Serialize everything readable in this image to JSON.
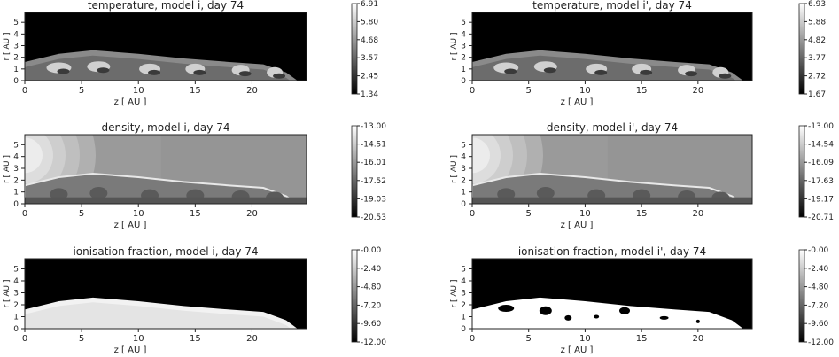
{
  "panels": [
    {
      "title": "temperature, model i, day 74",
      "xlabel": "z [ AU ]",
      "ylabel": "r [ AU ]",
      "xticks": [
        "0",
        "5",
        "10",
        "15",
        "20"
      ],
      "yticks": [
        "0",
        "1",
        "2",
        "3",
        "4",
        "5"
      ],
      "colorbar": [
        "6.91",
        "5.80",
        "4.68",
        "3.57",
        "2.45",
        "1.34"
      ],
      "kind": "temperature"
    },
    {
      "title": "temperature, model i', day 74",
      "xlabel": "z [ AU ]",
      "ylabel": "r [ AU ]",
      "xticks": [
        "0",
        "5",
        "10",
        "15",
        "20"
      ],
      "yticks": [
        "0",
        "1",
        "2",
        "3",
        "4",
        "5"
      ],
      "colorbar": [
        "6.93",
        "5.88",
        "4.82",
        "3.77",
        "2.72",
        "1.67"
      ],
      "kind": "temperature"
    },
    {
      "title": "density, model i, day 74",
      "xlabel": "z [ AU ]",
      "ylabel": "r [ AU ]",
      "xticks": [
        "0",
        "5",
        "10",
        "15",
        "20"
      ],
      "yticks": [
        "0",
        "1",
        "2",
        "3",
        "4",
        "5"
      ],
      "colorbar": [
        "-13.00",
        "-14.51",
        "-16.01",
        "-17.52",
        "-19.03",
        "-20.53"
      ],
      "kind": "density"
    },
    {
      "title": "density, model i', day 74",
      "xlabel": "z [ AU ]",
      "ylabel": "r [ AU ]",
      "xticks": [
        "0",
        "5",
        "10",
        "15",
        "20"
      ],
      "yticks": [
        "0",
        "1",
        "2",
        "3",
        "4",
        "5"
      ],
      "colorbar": [
        "-13.00",
        "-14.54",
        "-16.09",
        "-17.63",
        "-19.17",
        "-20.71"
      ],
      "kind": "density"
    },
    {
      "title": "ionisation fraction, model i, day 74",
      "xlabel": "z [ AU ]",
      "ylabel": "r [ AU ]",
      "xticks": [
        "0",
        "5",
        "10",
        "15",
        "20"
      ],
      "yticks": [
        "0",
        "1",
        "2",
        "3",
        "4",
        "5"
      ],
      "colorbar": [
        "-0.00",
        "-2.40",
        "-4.80",
        "-7.20",
        "-9.60",
        "-12.00"
      ],
      "kind": "ionisation-smooth"
    },
    {
      "title": "ionisation fraction, model i', day 74",
      "xlabel": "z [ AU ]",
      "ylabel": "r [ AU ]",
      "xticks": [
        "0",
        "5",
        "10",
        "15",
        "20"
      ],
      "yticks": [
        "0",
        "1",
        "2",
        "3",
        "4",
        "5"
      ],
      "colorbar": [
        "-0.00",
        "-2.40",
        "-4.80",
        "-7.20",
        "-9.60",
        "-12.00"
      ],
      "kind": "ionisation-patchy"
    }
  ],
  "colors": {
    "background": "#ffffff",
    "plot_black": "#000000",
    "axis_text": "#222222"
  }
}
